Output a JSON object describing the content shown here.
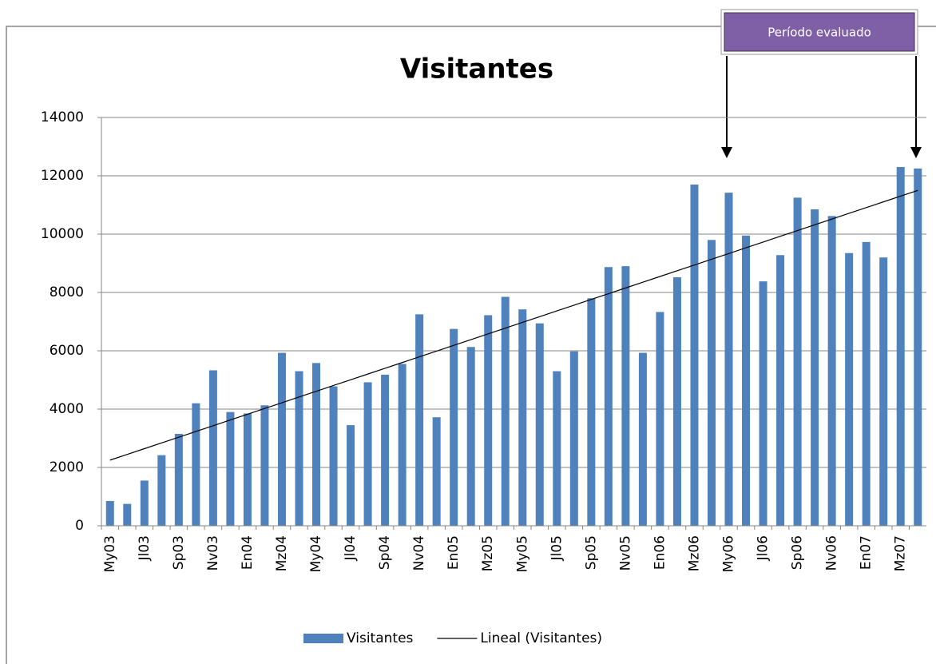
{
  "chart_data": {
    "type": "bar",
    "title": "Visitantes",
    "categories": [
      "My03",
      null,
      "Jl03",
      null,
      "Sp03",
      null,
      "Nv03",
      null,
      "En04",
      null,
      "Mz04",
      null,
      "My04",
      null,
      "Jl04",
      null,
      "Sp04",
      null,
      "Nv04",
      null,
      "En05",
      null,
      "Mz05",
      null,
      "My05",
      null,
      "Jl05",
      null,
      "Sp05",
      null,
      "Nv05",
      null,
      "En06",
      null,
      "Mz06",
      null,
      "My06",
      null,
      "Jl06",
      null,
      "Sp06",
      null,
      "Nv06",
      null,
      "En07",
      null,
      "Mz07",
      null
    ],
    "series": [
      {
        "name": "Visitantes",
        "color": "#4f81bd",
        "values": [
          850,
          750,
          1550,
          2420,
          3150,
          4200,
          5330,
          3900,
          3850,
          4130,
          5930,
          5300,
          5580,
          4780,
          3450,
          4920,
          5180,
          5550,
          7250,
          3720,
          6750,
          6130,
          7220,
          7850,
          7420,
          6940,
          5300,
          5980,
          7800,
          8870,
          8900,
          5930,
          7330,
          8520,
          11700,
          9800,
          11420,
          9950,
          8380,
          9280,
          11250,
          10850,
          10620,
          9350,
          9730,
          9200,
          12300,
          12250
        ]
      },
      {
        "name": "Lineal (Visitantes)",
        "color": "#000000",
        "type": "line",
        "values": [
          2250,
          2447,
          2644,
          2840,
          3037,
          3234,
          3431,
          3628,
          3824,
          4021,
          4218,
          4415,
          4612,
          4809,
          5005,
          5202,
          5399,
          5596,
          5793,
          5989,
          6186,
          6383,
          6580,
          6777,
          6973,
          7170,
          7367,
          7564,
          7761,
          7957,
          8154,
          8351,
          8548,
          8745,
          8941,
          9138,
          9335,
          9532,
          9729,
          9926,
          10122,
          10319,
          10516,
          10713,
          10910,
          11106,
          11303,
          11500
        ]
      }
    ],
    "annotation": "Período evaluado",
    "ylim": [
      0,
      14000
    ],
    "yticks": [
      0,
      2000,
      4000,
      6000,
      8000,
      10000,
      12000,
      14000
    ],
    "grid": true,
    "legend": "bottom"
  }
}
